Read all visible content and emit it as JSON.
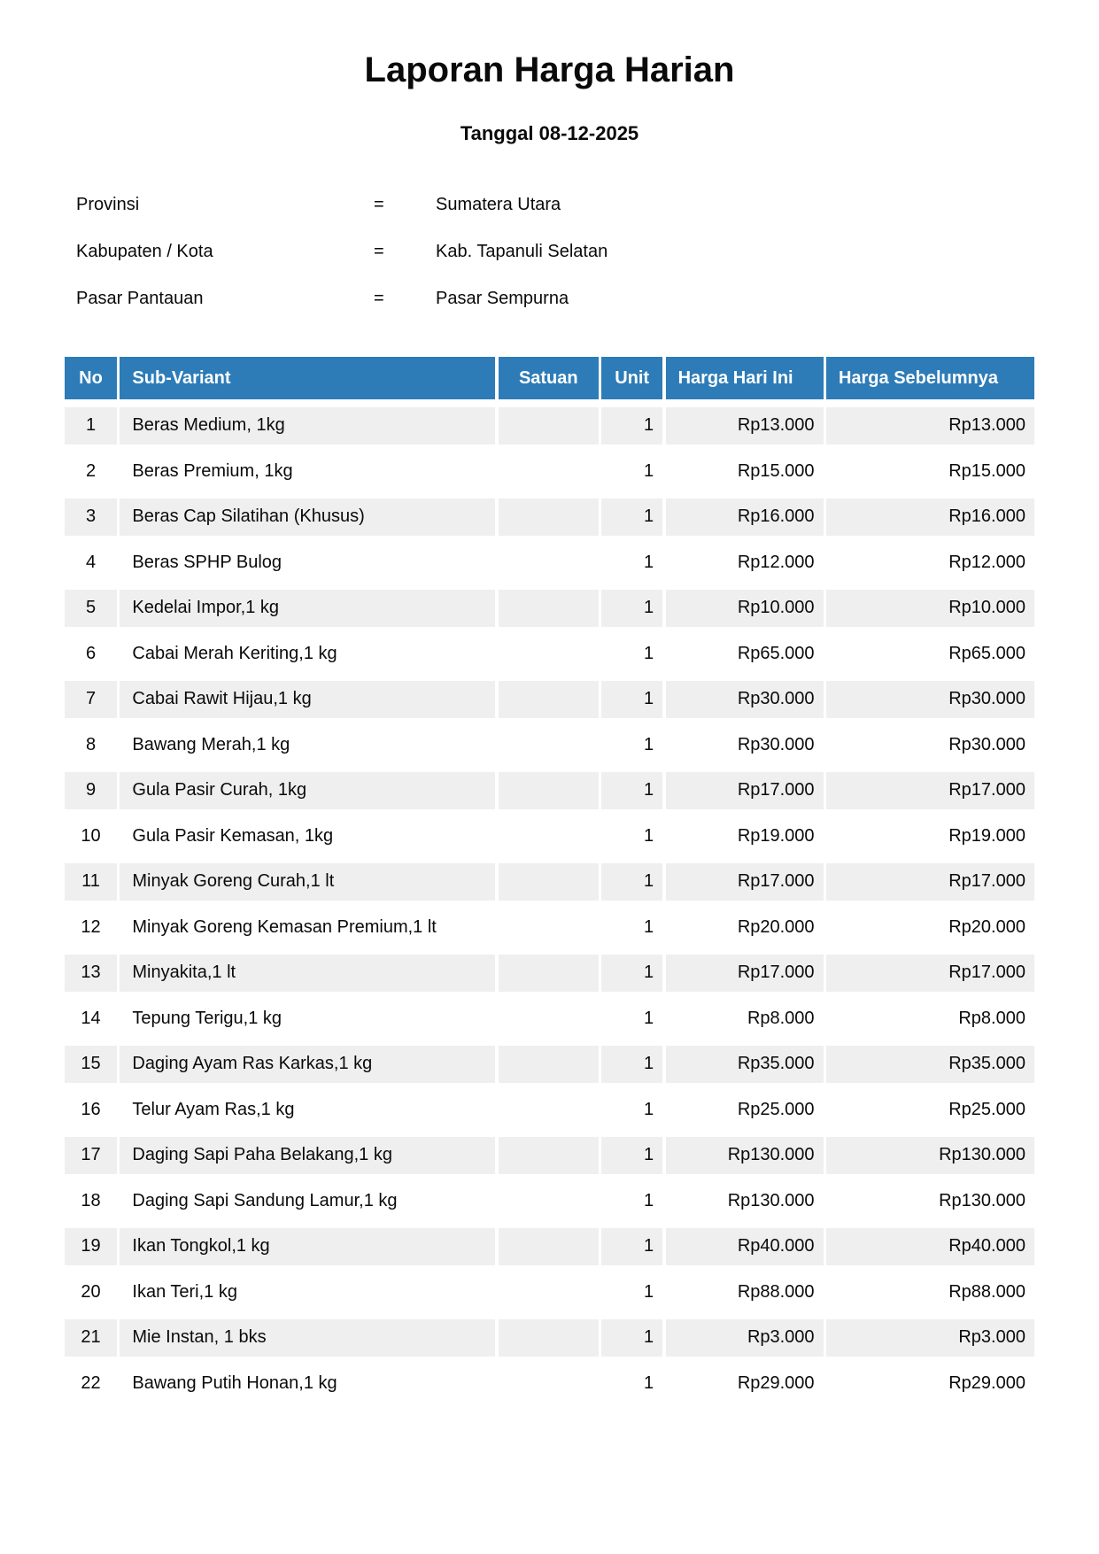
{
  "page": {
    "title": "Laporan Harga Harian",
    "date_line": "Tanggal 08-12-2025"
  },
  "meta": {
    "separator": "=",
    "rows": [
      {
        "label": "Provinsi",
        "value": "Sumatera Utara"
      },
      {
        "label": "Kabupaten / Kota",
        "value": "Kab. Tapanuli Selatan"
      },
      {
        "label": "Pasar Pantauan",
        "value": "Pasar Sempurna"
      }
    ]
  },
  "table": {
    "columns": [
      "No",
      "Sub-Variant",
      "Satuan",
      "Unit",
      "Harga Hari Ini",
      "Harga Sebelumnya"
    ],
    "rows": [
      {
        "no": "1",
        "sub_variant": "Beras Medium, 1kg",
        "satuan": "",
        "unit": "1",
        "harga_hari_ini": "Rp13.000",
        "harga_sebelumnya": "Rp13.000"
      },
      {
        "no": "2",
        "sub_variant": "Beras Premium, 1kg",
        "satuan": "",
        "unit": "1",
        "harga_hari_ini": "Rp15.000",
        "harga_sebelumnya": "Rp15.000"
      },
      {
        "no": "3",
        "sub_variant": "Beras Cap Silatihan (Khusus)",
        "satuan": "",
        "unit": "1",
        "harga_hari_ini": "Rp16.000",
        "harga_sebelumnya": "Rp16.000"
      },
      {
        "no": "4",
        "sub_variant": "Beras SPHP Bulog",
        "satuan": "",
        "unit": "1",
        "harga_hari_ini": "Rp12.000",
        "harga_sebelumnya": "Rp12.000"
      },
      {
        "no": "5",
        "sub_variant": "Kedelai Impor,1 kg",
        "satuan": "",
        "unit": "1",
        "harga_hari_ini": "Rp10.000",
        "harga_sebelumnya": "Rp10.000"
      },
      {
        "no": "6",
        "sub_variant": "Cabai Merah Keriting,1 kg",
        "satuan": "",
        "unit": "1",
        "harga_hari_ini": "Rp65.000",
        "harga_sebelumnya": "Rp65.000"
      },
      {
        "no": "7",
        "sub_variant": "Cabai Rawit Hijau,1 kg",
        "satuan": "",
        "unit": "1",
        "harga_hari_ini": "Rp30.000",
        "harga_sebelumnya": "Rp30.000"
      },
      {
        "no": "8",
        "sub_variant": "Bawang Merah,1 kg",
        "satuan": "",
        "unit": "1",
        "harga_hari_ini": "Rp30.000",
        "harga_sebelumnya": "Rp30.000"
      },
      {
        "no": "9",
        "sub_variant": "Gula Pasir Curah, 1kg",
        "satuan": "",
        "unit": "1",
        "harga_hari_ini": "Rp17.000",
        "harga_sebelumnya": "Rp17.000"
      },
      {
        "no": "10",
        "sub_variant": "Gula Pasir Kemasan, 1kg",
        "satuan": "",
        "unit": "1",
        "harga_hari_ini": "Rp19.000",
        "harga_sebelumnya": "Rp19.000"
      },
      {
        "no": "11",
        "sub_variant": "Minyak Goreng Curah,1 lt",
        "satuan": "",
        "unit": "1",
        "harga_hari_ini": "Rp17.000",
        "harga_sebelumnya": "Rp17.000"
      },
      {
        "no": "12",
        "sub_variant": "Minyak Goreng Kemasan Premium,1 lt",
        "satuan": "",
        "unit": "1",
        "harga_hari_ini": "Rp20.000",
        "harga_sebelumnya": "Rp20.000"
      },
      {
        "no": "13",
        "sub_variant": "Minyakita,1 lt",
        "satuan": "",
        "unit": "1",
        "harga_hari_ini": "Rp17.000",
        "harga_sebelumnya": "Rp17.000"
      },
      {
        "no": "14",
        "sub_variant": "Tepung Terigu,1 kg",
        "satuan": "",
        "unit": "1",
        "harga_hari_ini": "Rp8.000",
        "harga_sebelumnya": "Rp8.000"
      },
      {
        "no": "15",
        "sub_variant": "Daging Ayam Ras Karkas,1 kg",
        "satuan": "",
        "unit": "1",
        "harga_hari_ini": "Rp35.000",
        "harga_sebelumnya": "Rp35.000"
      },
      {
        "no": "16",
        "sub_variant": "Telur Ayam Ras,1 kg",
        "satuan": "",
        "unit": "1",
        "harga_hari_ini": "Rp25.000",
        "harga_sebelumnya": "Rp25.000"
      },
      {
        "no": "17",
        "sub_variant": "Daging Sapi Paha Belakang,1 kg",
        "satuan": "",
        "unit": "1",
        "harga_hari_ini": "Rp130.000",
        "harga_sebelumnya": "Rp130.000"
      },
      {
        "no": "18",
        "sub_variant": "Daging Sapi Sandung Lamur,1 kg",
        "satuan": "",
        "unit": "1",
        "harga_hari_ini": "Rp130.000",
        "harga_sebelumnya": "Rp130.000"
      },
      {
        "no": "19",
        "sub_variant": "Ikan Tongkol,1 kg",
        "satuan": "",
        "unit": "1",
        "harga_hari_ini": "Rp40.000",
        "harga_sebelumnya": "Rp40.000"
      },
      {
        "no": "20",
        "sub_variant": "Ikan Teri,1 kg",
        "satuan": "",
        "unit": "1",
        "harga_hari_ini": "Rp88.000",
        "harga_sebelumnya": "Rp88.000"
      },
      {
        "no": "21",
        "sub_variant": "Mie Instan, 1 bks",
        "satuan": "",
        "unit": "1",
        "harga_hari_ini": "Rp3.000",
        "harga_sebelumnya": "Rp3.000"
      },
      {
        "no": "22",
        "sub_variant": "Bawang Putih Honan,1 kg",
        "satuan": "",
        "unit": "1",
        "harga_hari_ini": "Rp29.000",
        "harga_sebelumnya": "Rp29.000"
      }
    ]
  },
  "colors": {
    "header_bg": "#2d7cb8",
    "header_text": "#ffffff",
    "row_stripe": "#efefef"
  }
}
